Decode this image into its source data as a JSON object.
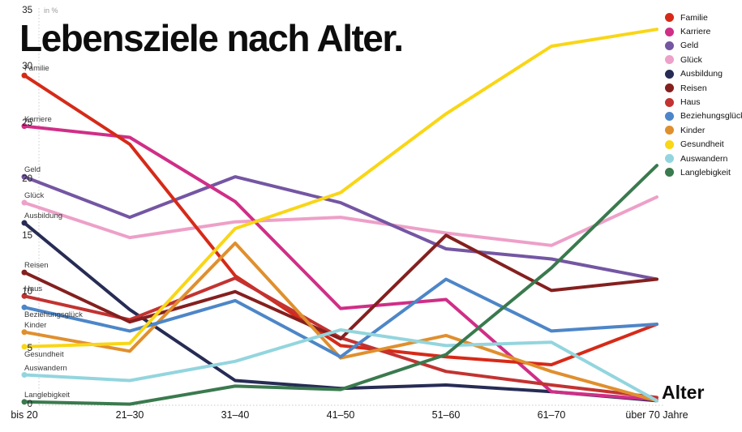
{
  "title": "Lebensziele nach Alter.",
  "x_axis": {
    "title": "Alter",
    "categories": [
      "bis 20",
      "21–30",
      "31–40",
      "41–50",
      "51–60",
      "61–70",
      "über 70 Jahre"
    ]
  },
  "y_axis": {
    "unit_label": "in %",
    "ticks": [
      0,
      5,
      10,
      15,
      20,
      25,
      30,
      35
    ],
    "max": 35
  },
  "chart_data": {
    "type": "line",
    "title": "Lebensziele nach Alter.",
    "xlabel": "Alter",
    "ylabel": "in %",
    "ylim": [
      0,
      35
    ],
    "grid": false,
    "legend_position": "right",
    "categories": [
      "bis 20",
      "21–30",
      "31–40",
      "41–50",
      "51–60",
      "61–70",
      "über 70 Jahre"
    ],
    "series": [
      {
        "name": "Familie",
        "color": "#d62a18",
        "values": [
          29.3,
          23.2,
          11.5,
          5.3,
          4.3,
          3.6,
          7.2
        ]
      },
      {
        "name": "Karriere",
        "color": "#d02e87",
        "values": [
          24.8,
          23.8,
          18.1,
          8.6,
          9.4,
          1.2,
          0.5
        ]
      },
      {
        "name": "Geld",
        "color": "#7456a3",
        "values": [
          20.3,
          16.7,
          20.3,
          18.0,
          13.9,
          13.0,
          11.2
        ]
      },
      {
        "name": "Glück",
        "color": "#eda0c8",
        "values": [
          18.0,
          14.9,
          16.3,
          16.7,
          15.3,
          14.2,
          18.5
        ]
      },
      {
        "name": "Ausbildung",
        "color": "#272c55",
        "values": [
          16.2,
          8.5,
          2.2,
          1.5,
          1.8,
          1.2,
          0.4
        ]
      },
      {
        "name": "Reisen",
        "color": "#84201f",
        "values": [
          11.8,
          7.4,
          10.1,
          5.9,
          15.1,
          10.2,
          11.2
        ]
      },
      {
        "name": "Haus",
        "color": "#c23331",
        "values": [
          9.7,
          7.6,
          11.3,
          6.0,
          3.0,
          1.8,
          0.7
        ]
      },
      {
        "name": "Beziehungsglück",
        "color": "#4d86c8",
        "values": [
          8.7,
          6.6,
          9.3,
          4.3,
          11.2,
          6.6,
          7.2
        ]
      },
      {
        "name": "Kinder",
        "color": "#e08f2e",
        "values": [
          6.5,
          4.8,
          14.4,
          4.2,
          6.2,
          3.0,
          0.4
        ]
      },
      {
        "name": "Gesundheit",
        "color": "#f9d616",
        "values": [
          5.2,
          5.5,
          15.7,
          18.9,
          25.9,
          31.9,
          33.4
        ]
      },
      {
        "name": "Auswandern",
        "color": "#93d5de",
        "values": [
          2.7,
          2.2,
          3.9,
          6.7,
          5.3,
          5.6,
          0.4
        ]
      },
      {
        "name": "Langlebigkeit",
        "color": "#3a7a4e",
        "values": [
          0.3,
          0.1,
          1.7,
          1.4,
          4.5,
          12.2,
          21.3
        ]
      }
    ]
  }
}
